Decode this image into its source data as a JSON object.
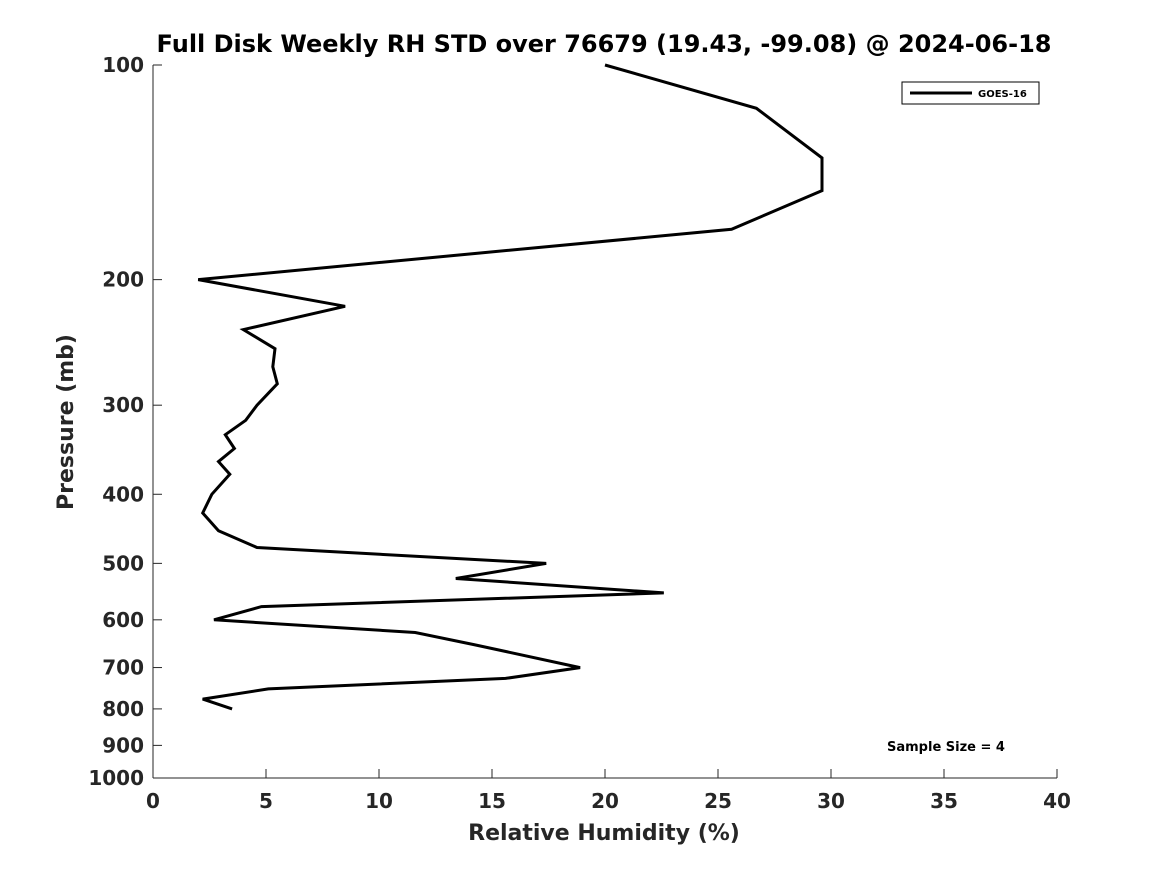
{
  "chart_data": {
    "type": "line",
    "title": "Full Disk Weekly RH STD over 76679 (19.43, -99.08) @ 2024-06-18",
    "xlabel": "Relative Humidity (%)",
    "ylabel": "Pressure (mb)",
    "xlim": [
      0,
      40
    ],
    "ylim": [
      100,
      1000
    ],
    "yscale": "log",
    "y_reversed": true,
    "x_ticks": [
      0,
      5,
      10,
      15,
      20,
      25,
      30,
      35,
      40
    ],
    "y_ticks": [
      100,
      200,
      300,
      400,
      500,
      600,
      700,
      800,
      900,
      1000
    ],
    "grid": false,
    "legend_position": "top-right",
    "series": [
      {
        "name": "GOES-16",
        "color": "#000000",
        "points": [
          {
            "x": 20.0,
            "y": 100
          },
          {
            "x": 26.7,
            "y": 115
          },
          {
            "x": 29.6,
            "y": 135
          },
          {
            "x": 29.6,
            "y": 150
          },
          {
            "x": 25.6,
            "y": 170
          },
          {
            "x": 2.0,
            "y": 200
          },
          {
            "x": 8.5,
            "y": 218
          },
          {
            "x": 4.0,
            "y": 235
          },
          {
            "x": 5.4,
            "y": 250
          },
          {
            "x": 5.3,
            "y": 265
          },
          {
            "x": 5.5,
            "y": 280
          },
          {
            "x": 4.6,
            "y": 300
          },
          {
            "x": 4.1,
            "y": 315
          },
          {
            "x": 3.2,
            "y": 330
          },
          {
            "x": 3.6,
            "y": 345
          },
          {
            "x": 2.9,
            "y": 360
          },
          {
            "x": 3.4,
            "y": 375
          },
          {
            "x": 2.6,
            "y": 400
          },
          {
            "x": 2.2,
            "y": 425
          },
          {
            "x": 2.9,
            "y": 450
          },
          {
            "x": 4.6,
            "y": 475
          },
          {
            "x": 17.4,
            "y": 500
          },
          {
            "x": 13.4,
            "y": 525
          },
          {
            "x": 22.6,
            "y": 550
          },
          {
            "x": 4.8,
            "y": 575
          },
          {
            "x": 2.7,
            "y": 600
          },
          {
            "x": 11.6,
            "y": 625
          },
          {
            "x": 14.2,
            "y": 650
          },
          {
            "x": 18.9,
            "y": 700
          },
          {
            "x": 15.6,
            "y": 725
          },
          {
            "x": 5.1,
            "y": 750
          },
          {
            "x": 2.2,
            "y": 775
          },
          {
            "x": 3.5,
            "y": 800
          }
        ]
      }
    ],
    "annotations": [
      {
        "text": "Sample Size = 4",
        "position": "bottom-right"
      }
    ]
  }
}
